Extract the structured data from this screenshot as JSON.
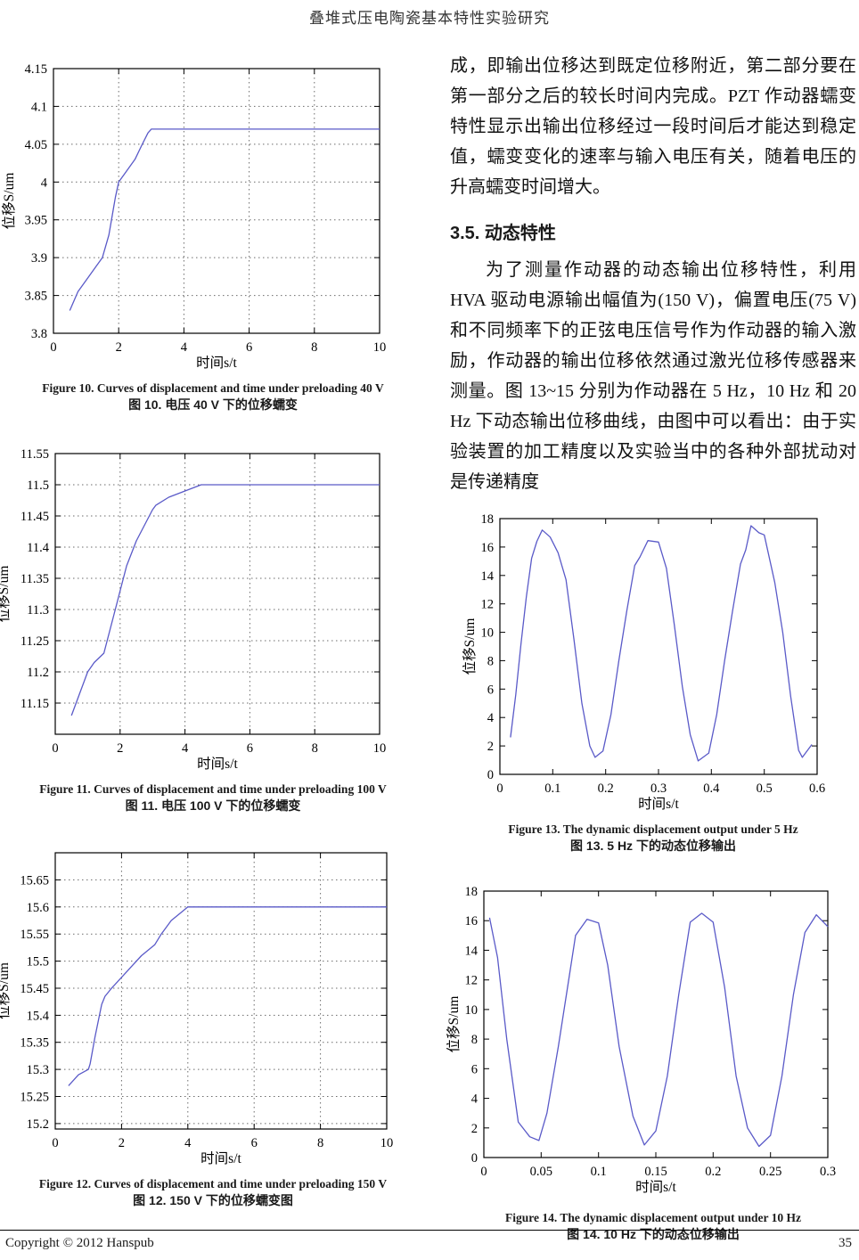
{
  "page": {
    "header_title": "叠堆式压电陶瓷基本特性实验研究",
    "footer_copyright": "Copyright © 2012 Hanspub",
    "footer_page_number": "35"
  },
  "text": {
    "paragraph_creep": "成，即输出位移达到既定位移附近，第二部分要在第一部分之后的较长时间内完成。PZT 作动器蠕变特性显示出输出位移经过一段时间后才能达到稳定值，蠕变变化的速率与输入电压有关，随着电压的升高蠕变时间增大。",
    "section_heading": "3.5. 动态特性",
    "paragraph_dynamic": "为了测量作动器的动态输出位移特性，利用 HVA 驱动电源输出幅值为(150 V)，偏置电压(75 V)和不同频率下的正弦电压信号作为作动器的输入激励，作动器的输出位移依然通过激光位移传感器来测量。图 13~15 分别为作动器在 5 Hz，10 Hz 和 20 Hz 下动态输出位移曲线，由图中可以看出：由于实验装置的加工精度以及实验当中的各种外部扰动对是传递精度"
  },
  "figures": {
    "fig10": {
      "caption_en": "Figure 10. Curves of displacement and time under preloading 40 V",
      "caption_zh": "图 10.  电压 40 V 下的位移蠕变"
    },
    "fig11": {
      "caption_en": "Figure 11. Curves of displacement and time under preloading 100 V",
      "caption_zh": "图 11.  电压 100 V 下的位移蠕变"
    },
    "fig12": {
      "caption_en": "Figure 12. Curves of displacement and time under preloading 150 V",
      "caption_zh": "图 12. 150 V 下的位移蠕变图"
    },
    "fig13": {
      "caption_en": "Figure 13. The dynamic displacement output under 5 Hz",
      "caption_zh": "图 13. 5 Hz 下的动态位移输出"
    },
    "fig14": {
      "caption_en": "Figure 14. The dynamic displacement output under 10 Hz",
      "caption_zh": "图 14. 10 Hz 下的动态位移输出"
    }
  },
  "colors": {
    "line": "#5a5ac8",
    "axis": "#000000",
    "grid": "#6b6b6b"
  },
  "chart_data": [
    {
      "id": "fig10",
      "type": "line",
      "title": "",
      "xlabel": "时间s/t",
      "ylabel": "位移S/um",
      "xlim": [
        0,
        10
      ],
      "ylim": [
        3.8,
        4.15
      ],
      "xticks": [
        0,
        2,
        4,
        6,
        8,
        10
      ],
      "xtick_labels": [
        "0",
        "2",
        "4",
        "6",
        "8",
        "10"
      ],
      "yticks": [
        3.8,
        3.85,
        3.9,
        3.95,
        4.0,
        4.05,
        4.1,
        4.15
      ],
      "ytick_labels": [
        "3.8",
        "3.85",
        "3.9",
        "3.95",
        "4",
        "4.05",
        "4.1",
        "4.15"
      ],
      "grid": true,
      "series": [
        {
          "name": "displacement-creep-40V",
          "points": [
            [
              0.5,
              3.83
            ],
            [
              0.75,
              3.855
            ],
            [
              1.0,
              3.87
            ],
            [
              1.3,
              3.888
            ],
            [
              1.5,
              3.9
            ],
            [
              1.7,
              3.93
            ],
            [
              1.9,
              3.98
            ],
            [
              2.0,
              4.0
            ],
            [
              2.2,
              4.012
            ],
            [
              2.5,
              4.03
            ],
            [
              2.7,
              4.048
            ],
            [
              2.9,
              4.065
            ],
            [
              3.0,
              4.07
            ],
            [
              10,
              4.07
            ]
          ]
        }
      ]
    },
    {
      "id": "fig11",
      "type": "line",
      "title": "",
      "xlabel": "时间s/t",
      "ylabel": "位移S/um",
      "xlim": [
        0,
        10
      ],
      "ylim": [
        11.1,
        11.55
      ],
      "xticks": [
        0,
        2,
        4,
        6,
        8,
        10
      ],
      "xtick_labels": [
        "0",
        "2",
        "4",
        "6",
        "8",
        "10"
      ],
      "yticks": [
        11.15,
        11.2,
        11.25,
        11.3,
        11.35,
        11.4,
        11.45,
        11.5,
        11.55
      ],
      "ytick_labels": [
        "11.15",
        "11.2",
        "11.25",
        "11.3",
        "11.35",
        "11.4",
        "11.45",
        "11.5",
        "11.55"
      ],
      "grid": true,
      "series": [
        {
          "name": "displacement-creep-100V",
          "points": [
            [
              0.5,
              11.13
            ],
            [
              0.75,
              11.165
            ],
            [
              1.0,
              11.2
            ],
            [
              1.2,
              11.215
            ],
            [
              1.5,
              11.23
            ],
            [
              1.7,
              11.27
            ],
            [
              1.9,
              11.31
            ],
            [
              2.0,
              11.33
            ],
            [
              2.2,
              11.37
            ],
            [
              2.5,
              11.41
            ],
            [
              2.8,
              11.44
            ],
            [
              3.0,
              11.46
            ],
            [
              3.1,
              11.467
            ],
            [
              3.5,
              11.48
            ],
            [
              4.0,
              11.49
            ],
            [
              4.5,
              11.5
            ],
            [
              10,
              11.5
            ]
          ]
        }
      ]
    },
    {
      "id": "fig12",
      "type": "line",
      "title": "",
      "xlabel": "时间s/t",
      "ylabel": "位移S/um",
      "xlim": [
        0,
        10
      ],
      "ylim": [
        15.19,
        15.7
      ],
      "xticks": [
        0,
        2,
        4,
        6,
        8,
        10
      ],
      "xtick_labels": [
        "0",
        "2",
        "4",
        "6",
        "8",
        "10"
      ],
      "yticks": [
        15.2,
        15.25,
        15.3,
        15.35,
        15.4,
        15.45,
        15.5,
        15.55,
        15.6,
        15.65
      ],
      "ytick_labels": [
        "15.2",
        "15.25",
        "15.3",
        "15.35",
        "15.4",
        "15.45",
        "15.5",
        "15.55",
        "15.6",
        "15.65"
      ],
      "grid": true,
      "series": [
        {
          "name": "displacement-creep-150V",
          "points": [
            [
              0.4,
              15.27
            ],
            [
              0.7,
              15.29
            ],
            [
              1.0,
              15.3
            ],
            [
              1.05,
              15.31
            ],
            [
              1.2,
              15.36
            ],
            [
              1.4,
              15.42
            ],
            [
              1.5,
              15.435
            ],
            [
              1.7,
              15.45
            ],
            [
              2.0,
              15.47
            ],
            [
              2.3,
              15.49
            ],
            [
              2.6,
              15.51
            ],
            [
              3.0,
              15.53
            ],
            [
              3.2,
              15.55
            ],
            [
              3.5,
              15.575
            ],
            [
              3.8,
              15.59
            ],
            [
              4.0,
              15.6
            ],
            [
              10,
              15.6
            ]
          ]
        }
      ]
    },
    {
      "id": "fig13",
      "type": "line",
      "title": "",
      "xlabel": "时间s/t",
      "ylabel": "位移S/um",
      "xlim": [
        0,
        0.6
      ],
      "ylim": [
        0,
        18
      ],
      "xticks": [
        0,
        0.1,
        0.2,
        0.3,
        0.4,
        0.5,
        0.6
      ],
      "xtick_labels": [
        "0",
        "0.1",
        "0.2",
        "0.3",
        "0.4",
        "0.5",
        "0.6"
      ],
      "yticks": [
        0,
        2,
        4,
        6,
        8,
        10,
        12,
        14,
        16,
        18
      ],
      "ytick_labels": [
        "0",
        "2",
        "4",
        "6",
        "8",
        "10",
        "12",
        "14",
        "16",
        "18"
      ],
      "grid": false,
      "series": [
        {
          "name": "dynamic-output-5Hz",
          "points": [
            [
              0.02,
              2.6
            ],
            [
              0.03,
              5.6
            ],
            [
              0.04,
              9.2
            ],
            [
              0.05,
              12.5
            ],
            [
              0.06,
              15.2
            ],
            [
              0.07,
              16.4
            ],
            [
              0.08,
              17.2
            ],
            [
              0.095,
              16.7
            ],
            [
              0.11,
              15.6
            ],
            [
              0.125,
              13.7
            ],
            [
              0.14,
              9.5
            ],
            [
              0.155,
              5.0
            ],
            [
              0.17,
              2.0
            ],
            [
              0.18,
              1.2
            ],
            [
              0.195,
              1.65
            ],
            [
              0.21,
              4.2
            ],
            [
              0.225,
              8.0
            ],
            [
              0.24,
              11.5
            ],
            [
              0.255,
              14.7
            ],
            [
              0.265,
              15.3
            ],
            [
              0.28,
              16.45
            ],
            [
              0.3,
              16.35
            ],
            [
              0.315,
              14.5
            ],
            [
              0.33,
              10.5
            ],
            [
              0.345,
              6.2
            ],
            [
              0.36,
              2.8
            ],
            [
              0.375,
              0.95
            ],
            [
              0.395,
              1.5
            ],
            [
              0.41,
              4.2
            ],
            [
              0.425,
              8.0
            ],
            [
              0.44,
              11.5
            ],
            [
              0.455,
              14.8
            ],
            [
              0.465,
              15.8
            ],
            [
              0.475,
              17.5
            ],
            [
              0.49,
              17.0
            ],
            [
              0.5,
              16.85
            ],
            [
              0.52,
              13.5
            ],
            [
              0.535,
              10.0
            ],
            [
              0.55,
              5.5
            ],
            [
              0.565,
              1.7
            ],
            [
              0.572,
              1.2
            ],
            [
              0.59,
              2.1
            ]
          ]
        }
      ]
    },
    {
      "id": "fig14",
      "type": "line",
      "title": "",
      "xlabel": "时间s/t",
      "ylabel": "位移S/um",
      "xlim": [
        0,
        0.3
      ],
      "ylim": [
        0,
        18
      ],
      "xticks": [
        0,
        0.05,
        0.1,
        0.15,
        0.2,
        0.25,
        0.3
      ],
      "xtick_labels": [
        "0",
        "0.05",
        "0.1",
        "0.15",
        "0.2",
        "0.25",
        "0.3"
      ],
      "yticks": [
        0,
        2,
        4,
        6,
        8,
        10,
        12,
        14,
        16,
        18
      ],
      "ytick_labels": [
        "0",
        "2",
        "4",
        "6",
        "8",
        "10",
        "12",
        "14",
        "16",
        "18"
      ],
      "grid": false,
      "series": [
        {
          "name": "dynamic-output-10Hz",
          "points": [
            [
              0.005,
              16.2
            ],
            [
              0.012,
              13.5
            ],
            [
              0.02,
              8.0
            ],
            [
              0.03,
              2.4
            ],
            [
              0.04,
              1.4
            ],
            [
              0.048,
              1.15
            ],
            [
              0.055,
              3.0
            ],
            [
              0.065,
              7.5
            ],
            [
              0.075,
              12.5
            ],
            [
              0.08,
              15.0
            ],
            [
              0.09,
              16.1
            ],
            [
              0.1,
              15.85
            ],
            [
              0.108,
              13.0
            ],
            [
              0.118,
              7.5
            ],
            [
              0.13,
              2.8
            ],
            [
              0.14,
              0.85
            ],
            [
              0.15,
              1.8
            ],
            [
              0.16,
              5.5
            ],
            [
              0.17,
              11.0
            ],
            [
              0.18,
              15.9
            ],
            [
              0.19,
              16.5
            ],
            [
              0.2,
              15.9
            ],
            [
              0.21,
              11.5
            ],
            [
              0.22,
              5.5
            ],
            [
              0.23,
              2.0
            ],
            [
              0.24,
              0.75
            ],
            [
              0.25,
              1.5
            ],
            [
              0.26,
              5.5
            ],
            [
              0.27,
              11.0
            ],
            [
              0.28,
              15.2
            ],
            [
              0.29,
              16.4
            ],
            [
              0.3,
              15.6
            ]
          ]
        }
      ]
    }
  ]
}
